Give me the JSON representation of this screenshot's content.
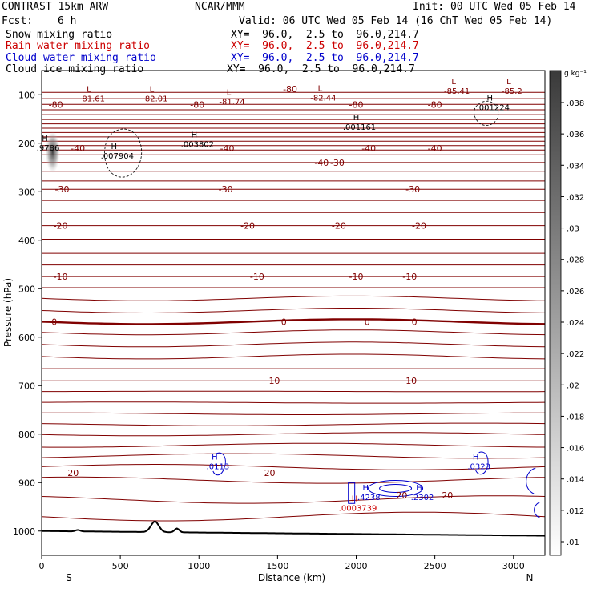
{
  "header": {
    "model": "CONTRAST 15km ARW",
    "org": "NCAR/MMM",
    "init": "Init: 00 UTC Wed 05 Feb 14",
    "fcst_label": "Fcst:",
    "fcst_value": "6 h",
    "valid": "Valid: 06 UTC Wed 05 Feb 14 (16 ChT Wed 05 Feb 14)"
  },
  "fields": [
    {
      "name": "Snow mixing ratio",
      "xy": "XY=  96.0,  2.5 to  96.0,214.7",
      "color": "#000000"
    },
    {
      "name": "Rain water mixing ratio",
      "xy": "XY=  96.0,  2.5 to  96.0,214.7",
      "color": "#cc0000"
    },
    {
      "name": "Cloud water mixing ratio",
      "xy": "XY=  96.0,  2.5 to  96.0,214.7",
      "color": "#0000cc"
    },
    {
      "name": "Cloud ice mixing ratio",
      "xy": "XY=  96.0,  2.5 to  96.0,214.7",
      "color": "#000000"
    }
  ],
  "chart_data": {
    "type": "cross-section-contour",
    "xlabel": "Distance (km)",
    "ylabel": "Pressure (hPa)",
    "xlim": [
      0,
      3200
    ],
    "ylim": [
      1050,
      50
    ],
    "x_ticks": [
      0,
      500,
      1000,
      1500,
      2000,
      2500,
      3000
    ],
    "y_ticks": [
      100,
      200,
      300,
      400,
      500,
      600,
      700,
      800,
      900,
      1000
    ],
    "left_end_label": "S",
    "right_end_label": "N",
    "colorbar": {
      "unit": "g kg⁻¹",
      "ticks": [
        ".01",
        ".012",
        ".014",
        ".016",
        ".018",
        ".02",
        ".022",
        ".024",
        ".026",
        ".028",
        ".03",
        ".032",
        ".034",
        ".036",
        ".038"
      ]
    },
    "temperature_contours_c": [
      {
        "p": 120,
        "labels": [
          {
            "x": 90,
            "t": "-80"
          },
          {
            "x": 990,
            "t": "-80"
          },
          {
            "x": 2000,
            "t": "-80"
          },
          {
            "x": 2500,
            "t": "-80"
          }
        ]
      },
      {
        "p": 210,
        "labels": [
          {
            "x": 230,
            "t": "-40"
          },
          {
            "x": 1180,
            "t": "-40"
          },
          {
            "x": 2080,
            "t": "-40"
          },
          {
            "x": 2500,
            "t": "-40"
          }
        ]
      },
      {
        "p": 240,
        "labels": [
          {
            "x": 1780,
            "t": "-40"
          },
          {
            "x": 1880,
            "t": "-30"
          }
        ]
      },
      {
        "p": 295,
        "labels": [
          {
            "x": 130,
            "t": "-30"
          },
          {
            "x": 1170,
            "t": "-30"
          },
          {
            "x": 2360,
            "t": "-30"
          }
        ]
      },
      {
        "p": 370,
        "labels": [
          {
            "x": 120,
            "t": "-20"
          },
          {
            "x": 1310,
            "t": "-20"
          },
          {
            "x": 1890,
            "t": "-20"
          },
          {
            "x": 2400,
            "t": "-20"
          }
        ]
      },
      {
        "p": 475,
        "labels": [
          {
            "x": 120,
            "t": "-10"
          },
          {
            "x": 1370,
            "t": "-10"
          },
          {
            "x": 2000,
            "t": "-10"
          },
          {
            "x": 2340,
            "t": "-10"
          }
        ]
      },
      {
        "p": 568,
        "labels": [
          {
            "x": 80,
            "t": "0"
          },
          {
            "x": 1540,
            "t": "0"
          },
          {
            "x": 2070,
            "t": "0"
          },
          {
            "x": 2370,
            "t": "0"
          }
        ]
      },
      {
        "p": 690,
        "labels": [
          {
            "x": 1480,
            "t": "10"
          },
          {
            "x": 2350,
            "t": "10"
          }
        ]
      },
      {
        "p": 880,
        "labels": [
          {
            "x": 200,
            "t": "20"
          },
          {
            "x": 1450,
            "t": "20"
          }
        ]
      }
    ],
    "extrema_labels": [
      {
        "kind": "L",
        "value": "-81.61",
        "x": 300,
        "p": 104
      },
      {
        "kind": "L",
        "value": "-82.01",
        "x": 700,
        "p": 104
      },
      {
        "kind": "L",
        "value": "-81.74",
        "x": 1190,
        "p": 110
      },
      {
        "kind": "L",
        "value": "-82.44",
        "x": 1770,
        "p": 102
      },
      {
        "kind": "L",
        "value": "-85.41",
        "x": 2620,
        "p": 88
      },
      {
        "kind": "L",
        "value": "-85.2",
        "x": 2970,
        "p": 88
      },
      {
        "kind": "H",
        "value": ".001224",
        "x": 2850,
        "p": 122
      },
      {
        "kind": "H",
        "value": ".001161",
        "x": 2000,
        "p": 162
      },
      {
        "kind": "H",
        "value": ".007904",
        "x": 460,
        "p": 222
      },
      {
        "kind": "H",
        "value": ".003802",
        "x": 970,
        "p": 198
      },
      {
        "kind": "H",
        "value": ".0113",
        "x": 1100,
        "p": 862
      },
      {
        "kind": "H",
        "value": ".0323",
        "x": 2760,
        "p": 862
      },
      {
        "kind": "H",
        "value": ".4238",
        "x": 2060,
        "p": 926
      },
      {
        "kind": "H",
        "value": ".2302",
        "x": 2400,
        "p": 926
      },
      {
        "kind": "H",
        "value": ".0003739",
        "x": 1990,
        "p": 948
      },
      {
        "kind": "H",
        "value": ".9786",
        "x": 0,
        "p": 205
      }
    ],
    "extra_labels": [
      {
        "t": "-80",
        "x": 1580,
        "p": 88
      },
      {
        "t": "20",
        "x": 2290,
        "p": 926
      },
      {
        "t": "20",
        "x": 2580,
        "p": 926
      }
    ],
    "surface_line_label": "terrain"
  }
}
